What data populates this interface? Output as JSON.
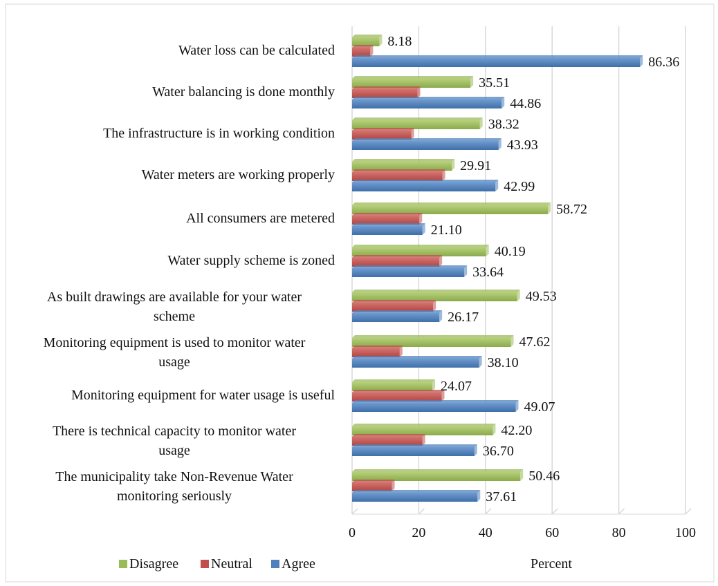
{
  "chart_data": {
    "type": "bar",
    "orientation": "horizontal",
    "categories": [
      [
        "Water loss can be calculated"
      ],
      [
        "Water balancing is done monthly"
      ],
      [
        "The infrastructure is in working condition"
      ],
      [
        "Water meters are working properly"
      ],
      [
        "All consumers are metered"
      ],
      [
        "Water supply scheme is zoned"
      ],
      [
        "As built drawings are  available for your water",
        "scheme"
      ],
      [
        "Monitoring equipment is used to monitor water",
        "usage"
      ],
      [
        "Monitoring equipment for water usage is useful"
      ],
      [
        "There is technical capacity to monitor water",
        "usage"
      ],
      [
        "The municipality take Non-Revenue Water",
        "monitoring seriously"
      ]
    ],
    "series": [
      {
        "name": "Disagree",
        "color": "#9BBB59",
        "values": [
          8.18,
          35.51,
          38.32,
          29.91,
          58.72,
          40.19,
          49.53,
          47.62,
          24.07,
          42.2,
          50.46
        ],
        "labels": [
          "8.18",
          "35.51",
          "38.32",
          "29.91",
          "58.72",
          "40.19",
          "49.53",
          "47.62",
          "24.07",
          "42.20",
          "50.46"
        ]
      },
      {
        "name": "Neutral",
        "color": "#C0504D",
        "values": [
          5.46,
          19.63,
          17.75,
          27.1,
          20.18,
          26.17,
          24.3,
          14.28,
          26.86,
          21.1,
          11.93
        ],
        "labels": null
      },
      {
        "name": "Agree",
        "color": "#4F81BD",
        "values": [
          86.36,
          44.86,
          43.93,
          42.99,
          21.1,
          33.64,
          26.17,
          38.1,
          49.07,
          36.7,
          37.61
        ],
        "labels": [
          "86.36",
          "44.86",
          "43.93",
          "42.99",
          "21.10",
          "33.64",
          "26.17",
          "38.10",
          "49.07",
          "36.70",
          "37.61"
        ]
      }
    ],
    "xlim": [
      0,
      100
    ],
    "xticks": [
      "0",
      "20",
      "40",
      "60",
      "80",
      "100"
    ],
    "xlabel": "Percent",
    "grid": true,
    "legend_position": "bottom-left"
  }
}
